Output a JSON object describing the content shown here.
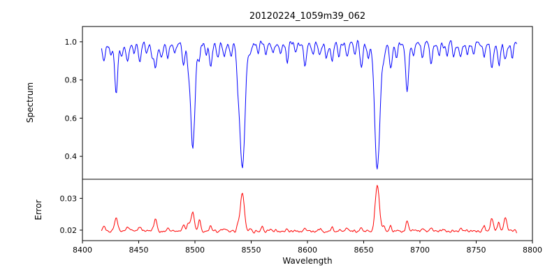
{
  "figure": {
    "background": "#ffffff",
    "text_color": "#000000",
    "spine_color": "#000000"
  },
  "chart_data": [
    {
      "type": "line",
      "panel": "spectrum",
      "title": "20120224_1059m39_062",
      "ylabel": "Spectrum",
      "line_color": "#0000ff",
      "legend": "none",
      "grid": false,
      "xlim": [
        8400,
        8800
      ],
      "ylim": [
        0.28,
        1.08
      ],
      "yticks": [
        {
          "v": 0.4,
          "label": "0.4"
        },
        {
          "v": 0.6,
          "label": "0.6"
        },
        {
          "v": 0.8,
          "label": "0.8"
        },
        {
          "v": 1.0,
          "label": "1.0"
        }
      ],
      "x_data_range": [
        8417,
        8786
      ],
      "sample_step": 0.7,
      "continuum": 1.0,
      "noise_sigma": 0.012,
      "noise_down_sigma": 0.013,
      "absorption_lines_format": "[center_wavelength, depth, sigma]",
      "absorption_lines": [
        [
          8419,
          0.09,
          1.2
        ],
        [
          8425,
          0.06,
          1.0
        ],
        [
          8430,
          0.26,
          1.3
        ],
        [
          8435,
          0.07,
          1.0
        ],
        [
          8440,
          0.1,
          1.1
        ],
        [
          8446,
          0.06,
          1.0
        ],
        [
          8451,
          0.1,
          1.1
        ],
        [
          8457,
          0.06,
          1.0
        ],
        [
          8462,
          0.07,
          1.0
        ],
        [
          8465,
          0.13,
          1.2
        ],
        [
          8470,
          0.08,
          1.0
        ],
        [
          8476,
          0.07,
          1.0
        ],
        [
          8482,
          0.06,
          1.0
        ],
        [
          8490,
          0.11,
          1.1
        ],
        [
          8494,
          0.1,
          1.0
        ],
        [
          8498.02,
          0.53,
          1.9
        ],
        [
          8504,
          0.08,
          1.0
        ],
        [
          8510,
          0.06,
          1.0
        ],
        [
          8514,
          0.11,
          1.1
        ],
        [
          8520,
          0.07,
          1.0
        ],
        [
          8526,
          0.07,
          1.0
        ],
        [
          8532,
          0.06,
          1.0
        ],
        [
          8538,
          0.11,
          1.1
        ],
        [
          8542.09,
          0.665,
          2.3
        ],
        [
          8549,
          0.06,
          1.0
        ],
        [
          8556,
          0.06,
          1.0
        ],
        [
          8563,
          0.05,
          1.0
        ],
        [
          8570,
          0.06,
          1.0
        ],
        [
          8576,
          0.05,
          1.0
        ],
        [
          8582,
          0.08,
          1.0
        ],
        [
          8590,
          0.06,
          1.0
        ],
        [
          8598,
          0.13,
          1.2
        ],
        [
          8605,
          0.06,
          1.0
        ],
        [
          8611,
          0.07,
          1.0
        ],
        [
          8617,
          0.07,
          1.0
        ],
        [
          8622,
          0.1,
          1.1
        ],
        [
          8628,
          0.06,
          1.0
        ],
        [
          8635,
          0.06,
          1.0
        ],
        [
          8642,
          0.07,
          1.0
        ],
        [
          8648,
          0.12,
          1.1
        ],
        [
          8654,
          0.07,
          1.0
        ],
        [
          8662.14,
          0.655,
          2.3
        ],
        [
          8668,
          0.07,
          1.0
        ],
        [
          8674,
          0.13,
          1.2
        ],
        [
          8679,
          0.07,
          1.0
        ],
        [
          8688.6,
          0.25,
          1.4
        ],
        [
          8694,
          0.07,
          1.0
        ],
        [
          8702,
          0.06,
          1.0
        ],
        [
          8710,
          0.09,
          1.1
        ],
        [
          8717,
          0.06,
          1.0
        ],
        [
          8724,
          0.06,
          1.0
        ],
        [
          8730,
          0.07,
          1.0
        ],
        [
          8736,
          0.08,
          1.0
        ],
        [
          8742,
          0.06,
          1.0
        ],
        [
          8748,
          0.06,
          1.0
        ],
        [
          8757,
          0.07,
          1.0
        ],
        [
          8764,
          0.13,
          1.2
        ],
        [
          8770,
          0.09,
          1.1
        ],
        [
          8776,
          0.1,
          1.1
        ],
        [
          8782,
          0.07,
          1.0
        ]
      ]
    },
    {
      "type": "line",
      "panel": "error",
      "ylabel": "Error",
      "xlabel": "Wavelength",
      "line_color": "#ff0000",
      "legend": "none",
      "grid": false,
      "xlim": [
        8400,
        8800
      ],
      "ylim": [
        0.0167,
        0.036
      ],
      "yticks": [
        {
          "v": 0.02,
          "label": "0.02"
        },
        {
          "v": 0.03,
          "label": "0.03"
        }
      ],
      "xticks": [
        {
          "v": 8400,
          "label": "8400"
        },
        {
          "v": 8450,
          "label": "8450"
        },
        {
          "v": 8500,
          "label": "8500"
        },
        {
          "v": 8550,
          "label": "8550"
        },
        {
          "v": 8600,
          "label": "8600"
        },
        {
          "v": 8650,
          "label": "8650"
        },
        {
          "v": 8700,
          "label": "8700"
        },
        {
          "v": 8750,
          "label": "8750"
        },
        {
          "v": 8800,
          "label": "8800"
        }
      ],
      "x_data_range": [
        8417,
        8786
      ],
      "sample_step": 0.7,
      "baseline": 0.0194,
      "noise_sigma": 0.0003,
      "noise_up_sigma": 0.0004,
      "peaks_format": "[center_wavelength, height, sigma]",
      "peaks": [
        [
          8419,
          0.0015,
          1.2
        ],
        [
          8430,
          0.0042,
          1.3
        ],
        [
          8440,
          0.0015,
          1.0
        ],
        [
          8451,
          0.0015,
          1.0
        ],
        [
          8465,
          0.004,
          1.2
        ],
        [
          8476,
          0.001,
          1.0
        ],
        [
          8490,
          0.0018,
          1.0
        ],
        [
          8494,
          0.0022,
          1.0
        ],
        [
          8498.02,
          0.006,
          1.5
        ],
        [
          8504,
          0.0035,
          1.1
        ],
        [
          8514,
          0.0018,
          1.0
        ],
        [
          8526,
          0.001,
          1.0
        ],
        [
          8538,
          0.0015,
          1.0
        ],
        [
          8542.09,
          0.012,
          1.8
        ],
        [
          8549,
          0.0008,
          1.0
        ],
        [
          8560,
          0.0008,
          1.0
        ],
        [
          8582,
          0.0008,
          1.0
        ],
        [
          8598,
          0.0014,
          1.0
        ],
        [
          8611,
          0.0008,
          1.0
        ],
        [
          8622,
          0.0012,
          1.0
        ],
        [
          8635,
          0.0008,
          1.0
        ],
        [
          8648,
          0.0012,
          1.0
        ],
        [
          8662.14,
          0.0142,
          1.8
        ],
        [
          8668,
          0.0012,
          1.0
        ],
        [
          8674,
          0.0016,
          1.0
        ],
        [
          8688.6,
          0.003,
          1.2
        ],
        [
          8702,
          0.0008,
          1.0
        ],
        [
          8710,
          0.0012,
          1.0
        ],
        [
          8736,
          0.001,
          1.0
        ],
        [
          8757,
          0.0012,
          1.0
        ],
        [
          8764,
          0.0042,
          1.3
        ],
        [
          8770,
          0.0028,
          1.1
        ],
        [
          8776,
          0.0045,
          1.2
        ]
      ]
    }
  ]
}
